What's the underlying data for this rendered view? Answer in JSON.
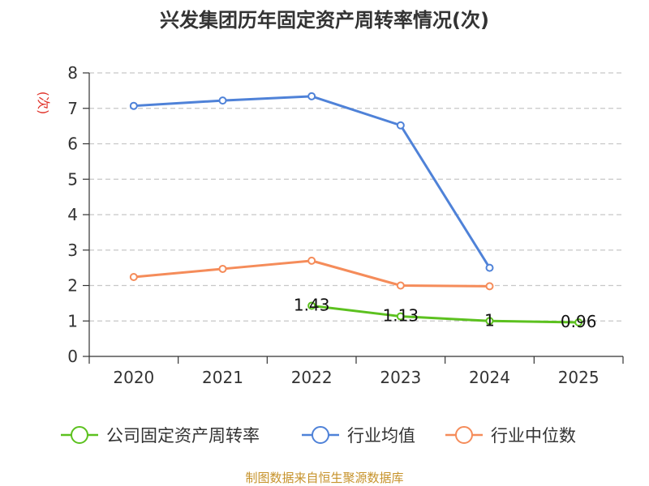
{
  "chart_data": {
    "type": "line",
    "title": "兴发集团历年固定资产周转率情况(次)",
    "xlabel": "",
    "ylabel": "(次)",
    "categories": [
      "2020",
      "2021",
      "2022",
      "2023",
      "2024",
      "2025"
    ],
    "ylim": [
      0,
      8
    ],
    "yticks": [
      "0",
      "1",
      "2",
      "3",
      "4",
      "5",
      "6",
      "7",
      "8"
    ],
    "grid": true,
    "legend_position": "bottom",
    "series": [
      {
        "name": "公司固定资产周转率",
        "color": "#5cc11f",
        "values": [
          null,
          null,
          1.43,
          1.13,
          1,
          0.96
        ],
        "labels": [
          null,
          null,
          "1.43",
          "1.13",
          "1",
          "0.96"
        ]
      },
      {
        "name": "行业均值",
        "color": "#4f82d8",
        "values": [
          7.07,
          7.22,
          7.34,
          6.52,
          2.5,
          null
        ],
        "labels": null
      },
      {
        "name": "行业中位数",
        "color": "#f58c5a",
        "values": [
          2.24,
          2.47,
          2.7,
          2.0,
          1.98,
          null
        ],
        "labels": null
      }
    ],
    "source": "制图数据来自恒生聚源数据库"
  }
}
